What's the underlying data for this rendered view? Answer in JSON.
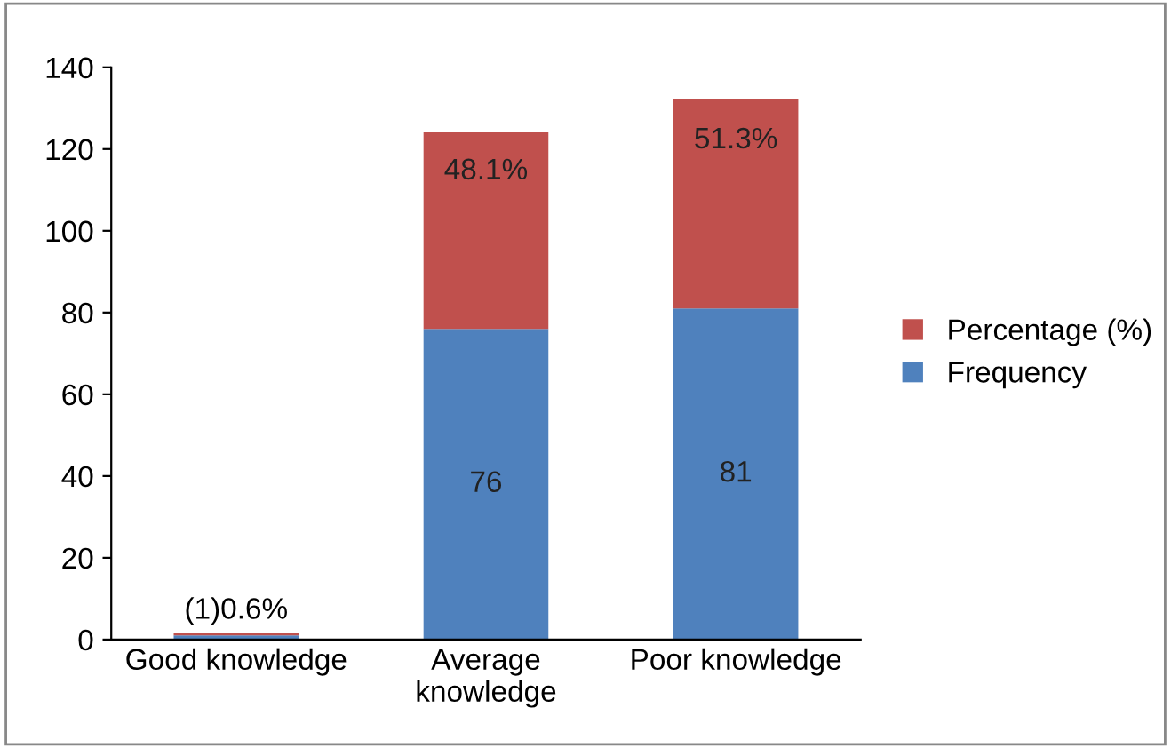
{
  "chart_data": {
    "type": "bar",
    "stacked": true,
    "categories": [
      "Good knowledge",
      "Average\nknowledge",
      "Poor knowledge"
    ],
    "series": [
      {
        "name": "Frequency",
        "color": "#4f81bd",
        "values": [
          1,
          76,
          81
        ],
        "value_labels": [
          null,
          "76",
          "81"
        ]
      },
      {
        "name": "Percentage (%)",
        "color": "#c0504d",
        "values": [
          0.6,
          48.1,
          51.3
        ],
        "value_labels": [
          "(1)0.6%",
          "48.1%",
          "51.3%"
        ]
      }
    ],
    "ylim": [
      0,
      140
    ],
    "yticks": [
      0,
      20,
      40,
      60,
      80,
      100,
      120,
      140
    ],
    "grid": false,
    "legend": "right"
  }
}
